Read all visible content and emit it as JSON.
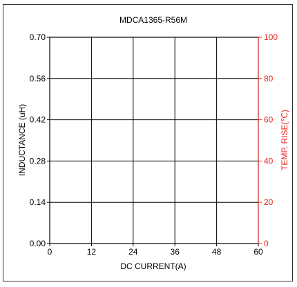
{
  "chart_data": {
    "type": "line",
    "title": "MDCA1365-R56M",
    "xlabel": "DC CURRENT(A)",
    "ylabel": "INDUCTANCE (uH)",
    "y2label": "TEMP. RISE(℃)",
    "x_ticks": [
      "0",
      "12",
      "24",
      "36",
      "48",
      "60"
    ],
    "y_ticks": [
      "0.00",
      "0.14",
      "0.28",
      "0.42",
      "0.56",
      "0.70"
    ],
    "y2_ticks": [
      "0",
      "20",
      "40",
      "60",
      "80",
      "100"
    ],
    "xlim": [
      0,
      60
    ],
    "ylim": [
      0,
      0.7
    ],
    "y2lim": [
      0,
      100
    ],
    "grid": true,
    "series": []
  },
  "colors": {
    "axis": "#000000",
    "secondary_axis": "#e8231f",
    "frame": "#333333",
    "background": "#ffffff"
  }
}
